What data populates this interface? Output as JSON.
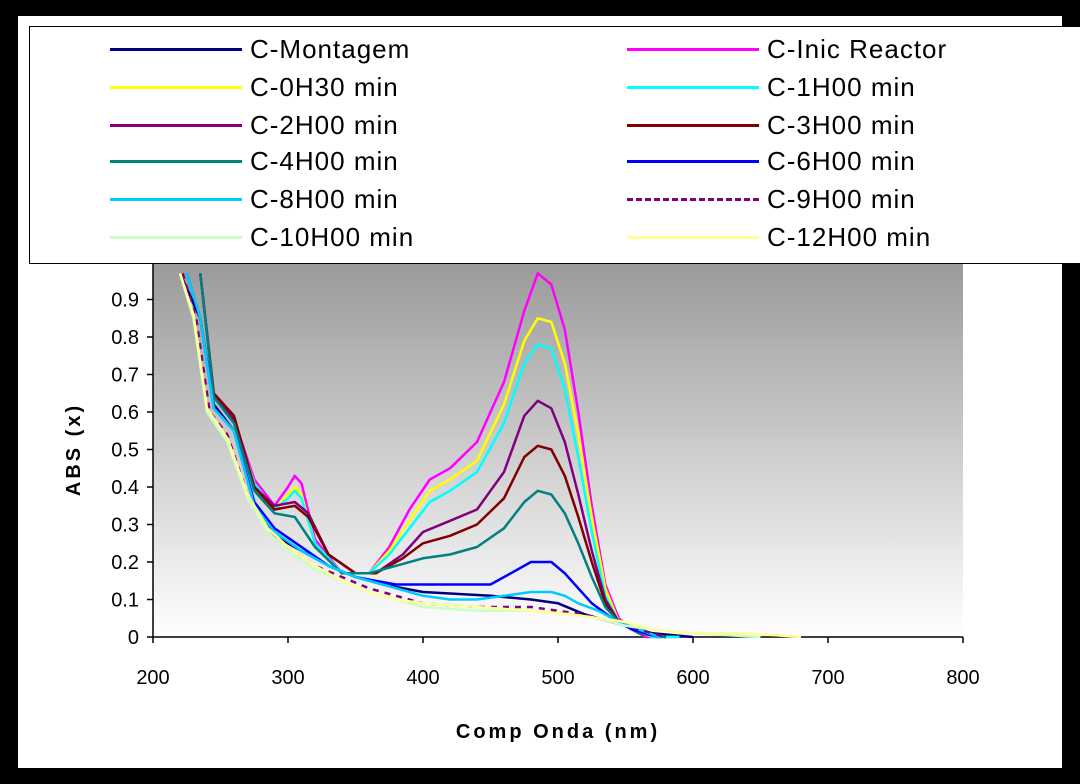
{
  "chart_data": {
    "type": "line",
    "xlabel": "Comp Onda (nm)",
    "ylabel": "ABS (x)",
    "xlim": [
      200,
      800
    ],
    "ylim": [
      0,
      1
    ],
    "xticks": [
      "200",
      "300",
      "400",
      "500",
      "600",
      "700",
      "800"
    ],
    "yticks": [
      "0",
      "0.1",
      "0.2",
      "0.3",
      "0.4",
      "0.5",
      "0.6",
      "0.7",
      "0.8",
      "0.9"
    ],
    "legend": "top",
    "series": [
      {
        "name": "C-Montagem",
        "color": "#000080",
        "dashed": false,
        "x": [
          220,
          235,
          245,
          260,
          275,
          290,
          310,
          330,
          350,
          370,
          400,
          450,
          480,
          500,
          520,
          550,
          570,
          600
        ],
        "y": [
          0.97,
          0.85,
          0.62,
          0.55,
          0.35,
          0.27,
          0.23,
          0.19,
          0.16,
          0.14,
          0.12,
          0.11,
          0.1,
          0.09,
          0.06,
          0.03,
          0.01,
          0.0
        ]
      },
      {
        "name": "C-Inic Reactor",
        "color": "#ff00ff",
        "dashed": false,
        "x": [
          235,
          245,
          260,
          275,
          290,
          300,
          305,
          310,
          320,
          340,
          360,
          375,
          390,
          405,
          420,
          440,
          460,
          475,
          485,
          495,
          505,
          515,
          525,
          535,
          545,
          555,
          565,
          580
        ],
        "y": [
          0.97,
          0.65,
          0.58,
          0.42,
          0.35,
          0.4,
          0.43,
          0.41,
          0.26,
          0.17,
          0.17,
          0.24,
          0.34,
          0.42,
          0.45,
          0.52,
          0.68,
          0.87,
          0.97,
          0.94,
          0.82,
          0.6,
          0.35,
          0.14,
          0.05,
          0.02,
          0.0,
          0.0
        ]
      },
      {
        "name": "C-0H30 min",
        "color": "#ffff00",
        "dashed": false,
        "x": [
          235,
          245,
          260,
          275,
          290,
          300,
          305,
          310,
          320,
          340,
          360,
          375,
          390,
          405,
          420,
          440,
          460,
          475,
          485,
          495,
          505,
          515,
          525,
          535,
          545,
          555,
          570,
          590
        ],
        "y": [
          0.97,
          0.64,
          0.57,
          0.41,
          0.34,
          0.38,
          0.4,
          0.38,
          0.25,
          0.17,
          0.17,
          0.23,
          0.31,
          0.39,
          0.42,
          0.47,
          0.62,
          0.79,
          0.85,
          0.84,
          0.73,
          0.54,
          0.32,
          0.13,
          0.04,
          0.02,
          0.0,
          0.0
        ]
      },
      {
        "name": "C-1H00 min",
        "color": "#00ffff",
        "dashed": false,
        "x": [
          235,
          245,
          260,
          275,
          290,
          300,
          305,
          310,
          320,
          340,
          360,
          375,
          390,
          405,
          420,
          440,
          460,
          475,
          485,
          495,
          505,
          515,
          525,
          535,
          545,
          555,
          570,
          590
        ],
        "y": [
          0.97,
          0.64,
          0.57,
          0.41,
          0.34,
          0.37,
          0.39,
          0.37,
          0.25,
          0.17,
          0.17,
          0.22,
          0.29,
          0.36,
          0.39,
          0.44,
          0.57,
          0.73,
          0.78,
          0.77,
          0.66,
          0.48,
          0.28,
          0.11,
          0.04,
          0.02,
          0.0,
          0.0
        ]
      },
      {
        "name": "C-2H00 min",
        "color": "#800080",
        "dashed": false,
        "x": [
          235,
          245,
          260,
          275,
          290,
          305,
          315,
          330,
          350,
          365,
          385,
          400,
          420,
          440,
          460,
          475,
          485,
          495,
          505,
          515,
          525,
          535,
          545,
          560,
          580
        ],
        "y": [
          0.97,
          0.64,
          0.58,
          0.4,
          0.35,
          0.36,
          0.33,
          0.22,
          0.17,
          0.17,
          0.22,
          0.28,
          0.31,
          0.34,
          0.44,
          0.59,
          0.63,
          0.61,
          0.52,
          0.38,
          0.23,
          0.1,
          0.04,
          0.01,
          0.0
        ]
      },
      {
        "name": "C-3H00 min",
        "color": "#800000",
        "dashed": false,
        "x": [
          235,
          245,
          260,
          275,
          290,
          305,
          315,
          330,
          350,
          365,
          385,
          400,
          420,
          440,
          460,
          475,
          485,
          495,
          505,
          515,
          525,
          535,
          545,
          560,
          580
        ],
        "y": [
          0.97,
          0.65,
          0.59,
          0.4,
          0.34,
          0.35,
          0.32,
          0.22,
          0.17,
          0.17,
          0.21,
          0.25,
          0.27,
          0.3,
          0.37,
          0.48,
          0.51,
          0.5,
          0.43,
          0.32,
          0.2,
          0.09,
          0.04,
          0.01,
          0.0
        ]
      },
      {
        "name": "C-4H00 min",
        "color": "#008080",
        "dashed": false,
        "x": [
          235,
          245,
          260,
          275,
          290,
          305,
          320,
          340,
          360,
          380,
          400,
          420,
          440,
          460,
          475,
          485,
          495,
          505,
          515,
          525,
          535,
          545,
          560,
          580
        ],
        "y": [
          0.97,
          0.64,
          0.57,
          0.39,
          0.33,
          0.32,
          0.24,
          0.17,
          0.17,
          0.19,
          0.21,
          0.22,
          0.24,
          0.29,
          0.36,
          0.39,
          0.38,
          0.33,
          0.25,
          0.16,
          0.08,
          0.04,
          0.01,
          0.0
        ]
      },
      {
        "name": "C-6H00 min",
        "color": "#0000ff",
        "dashed": false,
        "x": [
          225,
          235,
          245,
          260,
          275,
          290,
          310,
          330,
          350,
          365,
          380,
          420,
          450,
          465,
          480,
          495,
          505,
          515,
          525,
          540,
          555,
          575
        ],
        "y": [
          0.97,
          0.85,
          0.61,
          0.55,
          0.36,
          0.29,
          0.24,
          0.19,
          0.16,
          0.15,
          0.14,
          0.14,
          0.14,
          0.17,
          0.2,
          0.2,
          0.17,
          0.13,
          0.09,
          0.05,
          0.02,
          0.0
        ]
      },
      {
        "name": "C-8H00 min",
        "color": "#00ccff",
        "dashed": false,
        "x": [
          225,
          235,
          245,
          260,
          275,
          290,
          310,
          330,
          350,
          370,
          400,
          420,
          440,
          460,
          480,
          495,
          505,
          515,
          530,
          545,
          560,
          575
        ],
        "y": [
          0.97,
          0.85,
          0.61,
          0.55,
          0.35,
          0.28,
          0.23,
          0.19,
          0.16,
          0.14,
          0.11,
          0.1,
          0.1,
          0.11,
          0.12,
          0.12,
          0.11,
          0.09,
          0.07,
          0.04,
          0.02,
          0.0
        ]
      },
      {
        "name": "C-9H00 min",
        "color": "#800080",
        "dashed": true,
        "x": [
          222,
          232,
          242,
          255,
          270,
          285,
          300,
          320,
          340,
          360,
          380,
          400,
          440,
          480,
          500,
          520,
          540,
          560,
          580
        ],
        "y": [
          0.97,
          0.85,
          0.6,
          0.54,
          0.38,
          0.29,
          0.24,
          0.19,
          0.16,
          0.13,
          0.11,
          0.09,
          0.08,
          0.08,
          0.07,
          0.06,
          0.04,
          0.02,
          0.0
        ]
      },
      {
        "name": "C-10H00 min",
        "color": "#c8ffc8",
        "dashed": false,
        "x": [
          220,
          230,
          240,
          255,
          270,
          285,
          300,
          320,
          340,
          360,
          380,
          400,
          440,
          480,
          510,
          530,
          550,
          570,
          600,
          650
        ],
        "y": [
          0.97,
          0.85,
          0.6,
          0.52,
          0.37,
          0.28,
          0.23,
          0.18,
          0.15,
          0.12,
          0.1,
          0.08,
          0.07,
          0.07,
          0.06,
          0.05,
          0.03,
          0.02,
          0.01,
          0.0
        ]
      },
      {
        "name": "C-12H00 min",
        "color": "#ffff99",
        "dashed": false,
        "x": [
          220,
          230,
          240,
          255,
          270,
          285,
          300,
          320,
          340,
          360,
          380,
          400,
          440,
          480,
          510,
          530,
          550,
          570,
          600,
          640,
          680
        ],
        "y": [
          0.97,
          0.86,
          0.61,
          0.53,
          0.38,
          0.29,
          0.24,
          0.19,
          0.15,
          0.12,
          0.1,
          0.09,
          0.08,
          0.07,
          0.06,
          0.05,
          0.04,
          0.02,
          0.01,
          0.01,
          0.0
        ]
      }
    ]
  }
}
